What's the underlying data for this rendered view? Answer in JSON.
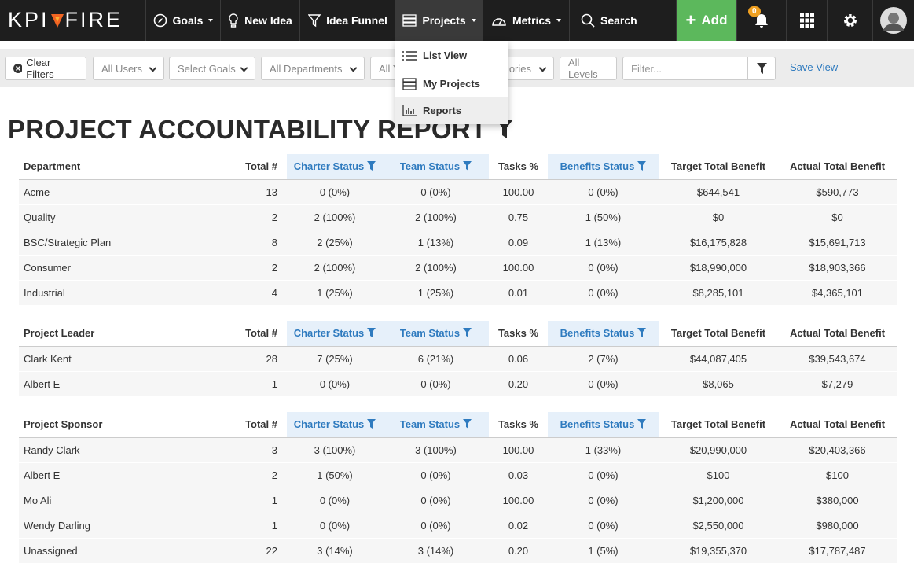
{
  "nav": {
    "logo_left": "KPI",
    "logo_right": "FIRE",
    "items": [
      "Goals",
      "New Idea",
      "Idea Funnel",
      "Projects",
      "Metrics",
      "Search"
    ],
    "add": "Add",
    "notifications": "0"
  },
  "dropdown": {
    "items": [
      "List View",
      "My Projects",
      "Reports"
    ]
  },
  "filters": {
    "clear": "Clear Filters",
    "selects": [
      "All Users",
      "Select Goals",
      "All Departments",
      "All Y",
      "ories",
      "All Levels"
    ],
    "placeholder": "Filter...",
    "save": "Save View"
  },
  "report": {
    "title": "PROJECT ACCOUNTABILITY REPORT",
    "tables": [
      {
        "header": [
          "Department",
          "Total #",
          "Charter Status",
          "Team Status",
          "Tasks %",
          "Benefits Status",
          "Target Total Benefit",
          "Actual Total Benefit"
        ],
        "rows": [
          [
            "Acme",
            "13",
            "0 (0%)",
            "0 (0%)",
            "100.00",
            "0 (0%)",
            "$644,541",
            "$590,773"
          ],
          [
            "Quality",
            "2",
            "2 (100%)",
            "2 (100%)",
            "0.75",
            "1 (50%)",
            "$0",
            "$0"
          ],
          [
            "BSC/Strategic Plan",
            "8",
            "2 (25%)",
            "1 (13%)",
            "0.09",
            "1 (13%)",
            "$16,175,828",
            "$15,691,713"
          ],
          [
            "Consumer",
            "2",
            "2 (100%)",
            "2 (100%)",
            "100.00",
            "0 (0%)",
            "$18,990,000",
            "$18,903,366"
          ],
          [
            "Industrial",
            "4",
            "1 (25%)",
            "1 (25%)",
            "0.01",
            "0 (0%)",
            "$8,285,101",
            "$4,365,101"
          ]
        ]
      },
      {
        "header": [
          "Project Leader",
          "Total #",
          "Charter Status",
          "Team Status",
          "Tasks %",
          "Benefits Status",
          "Target Total Benefit",
          "Actual Total Benefit"
        ],
        "rows": [
          [
            "Clark Kent",
            "28",
            "7 (25%)",
            "6 (21%)",
            "0.06",
            "2 (7%)",
            "$44,087,405",
            "$39,543,674"
          ],
          [
            "Albert E",
            "1",
            "0 (0%)",
            "0 (0%)",
            "0.20",
            "0 (0%)",
            "$8,065",
            "$7,279"
          ]
        ]
      },
      {
        "header": [
          "Project Sponsor",
          "Total #",
          "Charter Status",
          "Team Status",
          "Tasks %",
          "Benefits Status",
          "Target Total Benefit",
          "Actual Total Benefit"
        ],
        "rows": [
          [
            "Randy Clark",
            "3",
            "3 (100%)",
            "3 (100%)",
            "100.00",
            "1 (33%)",
            "$20,990,000",
            "$20,403,366"
          ],
          [
            "Albert E",
            "2",
            "1 (50%)",
            "0 (0%)",
            "0.03",
            "0 (0%)",
            "$100",
            "$100"
          ],
          [
            "Mo Ali",
            "1",
            "0 (0%)",
            "0 (0%)",
            "100.00",
            "0 (0%)",
            "$1,200,000",
            "$380,000"
          ],
          [
            "Wendy Darling",
            "1",
            "0 (0%)",
            "0 (0%)",
            "0.02",
            "0 (0%)",
            "$2,550,000",
            "$980,000"
          ],
          [
            "Unassigned",
            "22",
            "3 (14%)",
            "3 (14%)",
            "0.20",
            "1 (5%)",
            "$19,355,370",
            "$17,787,487"
          ]
        ]
      }
    ]
  }
}
